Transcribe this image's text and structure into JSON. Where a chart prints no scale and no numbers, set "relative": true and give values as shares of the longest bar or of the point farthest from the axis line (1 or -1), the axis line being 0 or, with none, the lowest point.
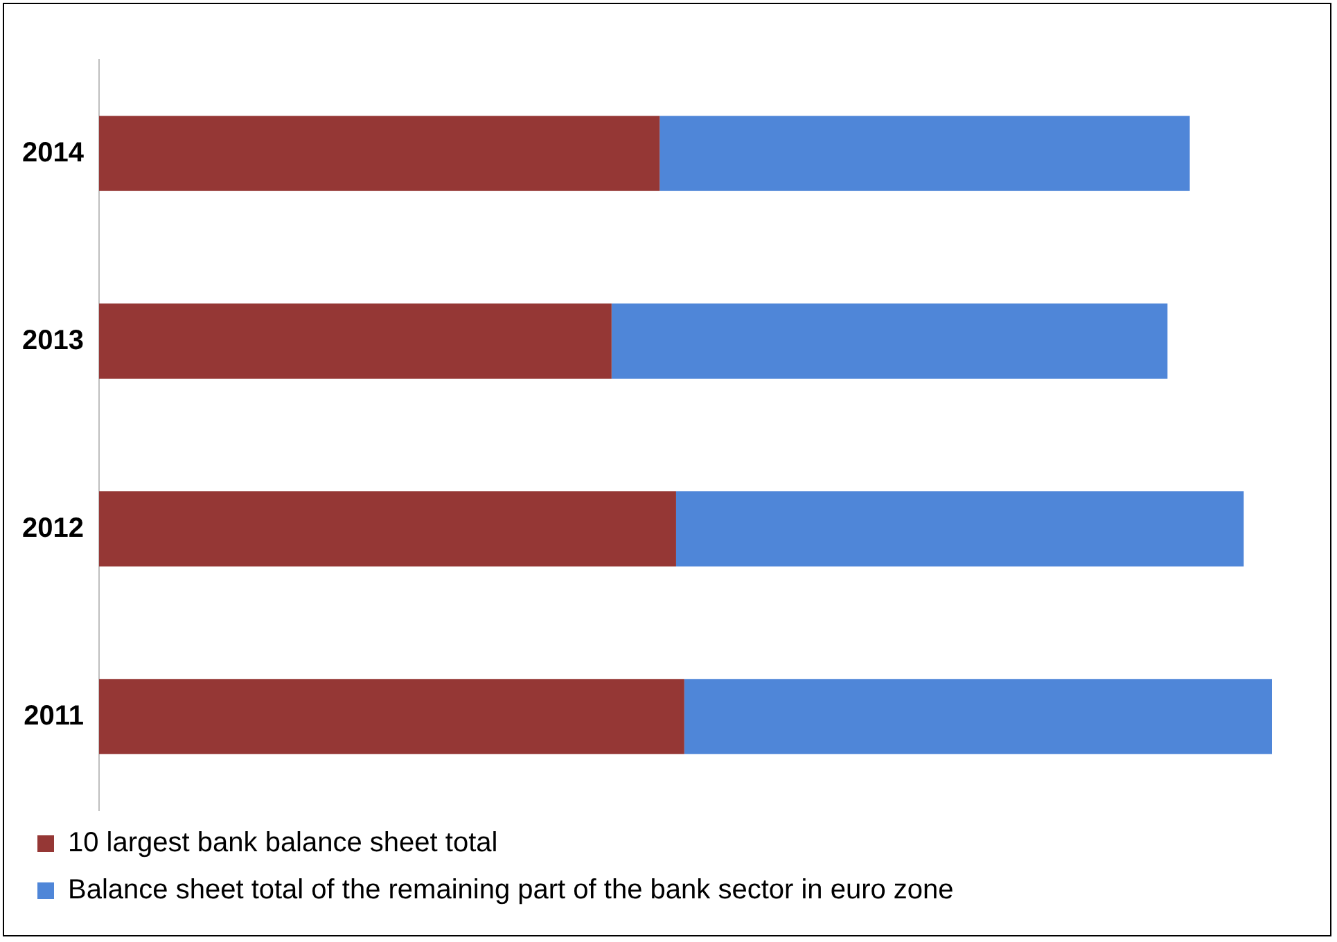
{
  "chart_data": {
    "type": "bar",
    "orientation": "horizontal",
    "stacked": true,
    "relative": true,
    "categories": [
      "2014",
      "2013",
      "2012",
      "2011"
    ],
    "series": [
      {
        "name": "10 largest bank balance sheet total",
        "color": "#953735",
        "values": [
          0.478,
          0.437,
          0.492,
          0.499
        ]
      },
      {
        "name": "Balance sheet total of the remaining part of the bank sector in euro zone",
        "color": "#4f86d8",
        "values": [
          0.452,
          0.474,
          0.484,
          0.501
        ]
      }
    ],
    "legend": "bottom"
  }
}
